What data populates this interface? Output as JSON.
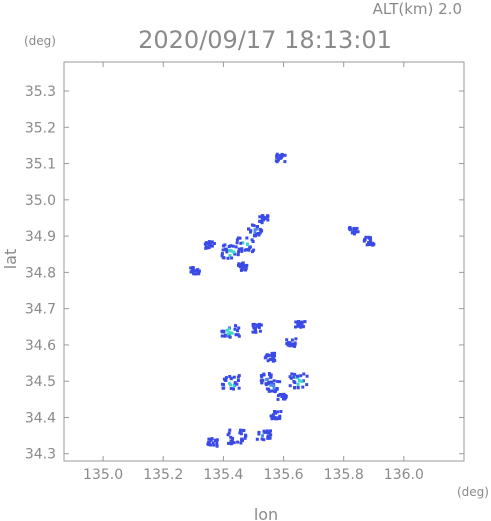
{
  "header": {
    "altitude_label": "ALT(km)  2.0",
    "timestamp": "2020/09/17  18:13:01"
  },
  "axes": {
    "y_unit": "(deg)",
    "x_unit": "(deg)",
    "y_label": "lat",
    "x_label": "lon"
  },
  "chart_data": {
    "type": "heatmap",
    "title": "2020/09/17  18:13:01",
    "subtitle": "ALT(km)  2.0",
    "xlabel": "lon",
    "ylabel": "lat",
    "x_unit": "(deg)",
    "y_unit": "(deg)",
    "xlim": [
      134.87,
      136.2
    ],
    "ylim": [
      34.28,
      35.38
    ],
    "x_ticks": [
      "135.0",
      "135.2",
      "135.4",
      "135.6",
      "135.8",
      "136.0"
    ],
    "y_ticks": [
      "34.3",
      "34.4",
      "34.5",
      "34.6",
      "34.7",
      "34.8",
      "34.9",
      "35.0",
      "35.1",
      "35.2",
      "35.3"
    ],
    "grid": false,
    "colors": {
      "weak": "#3a4ae6",
      "moderate": "#4c8cf0",
      "strong": "#3ad7c9"
    },
    "echo_cells": [
      {
        "lon": 135.585,
        "lat": 35.12,
        "level": "weak"
      },
      {
        "lon": 135.35,
        "lat": 34.88,
        "level": "weak"
      },
      {
        "lon": 135.47,
        "lat": 34.88,
        "level": "strong"
      },
      {
        "lon": 135.42,
        "lat": 34.86,
        "level": "strong"
      },
      {
        "lon": 135.5,
        "lat": 34.92,
        "level": "moderate"
      },
      {
        "lon": 135.53,
        "lat": 34.95,
        "level": "weak"
      },
      {
        "lon": 135.3,
        "lat": 34.81,
        "level": "weak"
      },
      {
        "lon": 135.46,
        "lat": 34.82,
        "level": "weak"
      },
      {
        "lon": 135.88,
        "lat": 34.89,
        "level": "weak"
      },
      {
        "lon": 135.83,
        "lat": 34.92,
        "level": "weak"
      },
      {
        "lon": 135.42,
        "lat": 34.64,
        "level": "strong"
      },
      {
        "lon": 135.51,
        "lat": 34.65,
        "level": "weak"
      },
      {
        "lon": 135.55,
        "lat": 34.57,
        "level": "weak"
      },
      {
        "lon": 135.65,
        "lat": 34.66,
        "level": "weak"
      },
      {
        "lon": 135.62,
        "lat": 34.61,
        "level": "weak"
      },
      {
        "lon": 135.54,
        "lat": 34.51,
        "level": "moderate"
      },
      {
        "lon": 135.56,
        "lat": 34.49,
        "level": "moderate"
      },
      {
        "lon": 135.59,
        "lat": 34.46,
        "level": "weak"
      },
      {
        "lon": 135.645,
        "lat": 34.505,
        "level": "strong"
      },
      {
        "lon": 135.42,
        "lat": 34.5,
        "level": "strong"
      },
      {
        "lon": 135.57,
        "lat": 34.41,
        "level": "weak"
      },
      {
        "lon": 135.44,
        "lat": 34.35,
        "level": "strong"
      },
      {
        "lon": 135.36,
        "lat": 34.335,
        "level": "weak"
      },
      {
        "lon": 135.53,
        "lat": 34.355,
        "level": "moderate"
      }
    ]
  }
}
